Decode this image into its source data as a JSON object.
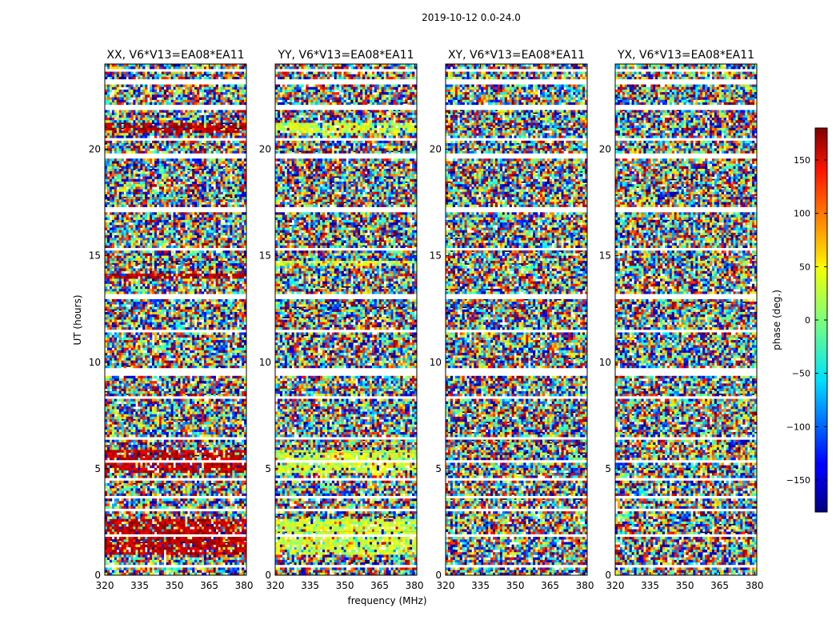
{
  "figure": {
    "suptitle": "2019-10-12 0.0-24.0",
    "xlabel": "frequency (MHz)",
    "ylabel": "UT (hours)"
  },
  "chart_data": {
    "type": "heatmap",
    "panels": [
      {
        "title": "XX, V6*V13=EA08*EA11",
        "style": "xx"
      },
      {
        "title": "YY, V6*V13=EA08*EA11",
        "style": "yy"
      },
      {
        "title": "XY, V6*V13=EA08*EA11",
        "style": "noise"
      },
      {
        "title": "YX, V6*V13=EA08*EA11",
        "style": "noise"
      }
    ],
    "x_ticks": [
      "320",
      "335",
      "350",
      "365",
      "380"
    ],
    "x_tick_values": [
      320,
      335,
      350,
      365,
      380
    ],
    "xlim": [
      320,
      381
    ],
    "y_ticks": [
      "0",
      "5",
      "10",
      "15",
      "20"
    ],
    "y_tick_values": [
      0,
      5,
      10,
      15,
      20
    ],
    "ylim": [
      0,
      24
    ],
    "colorbar": {
      "label": "phase (deg.)",
      "ticks": [
        "150",
        "100",
        "50",
        "0",
        "−50",
        "−100",
        "−150"
      ],
      "tick_values": [
        150,
        100,
        50,
        0,
        -50,
        -100,
        -150
      ],
      "range": [
        -180,
        180
      ],
      "colormap": "jet"
    },
    "flagged_ut_ranges": [
      [
        23.6,
        23.8
      ],
      [
        23.1,
        23.25
      ],
      [
        21.9,
        22.05
      ],
      [
        20.4,
        20.55
      ],
      [
        19.6,
        19.75
      ],
      [
        17.0,
        17.25
      ],
      [
        15.2,
        15.3
      ],
      [
        13.0,
        13.15
      ],
      [
        11.4,
        11.5
      ],
      [
        9.4,
        9.7
      ],
      [
        8.3,
        8.4
      ],
      [
        6.4,
        6.5
      ],
      [
        5.3,
        5.45
      ],
      [
        4.5,
        4.6
      ],
      [
        3.55,
        3.7
      ],
      [
        3.0,
        3.1
      ],
      [
        1.8,
        1.9
      ],
      [
        0.4,
        0.5
      ]
    ],
    "grid": false
  }
}
